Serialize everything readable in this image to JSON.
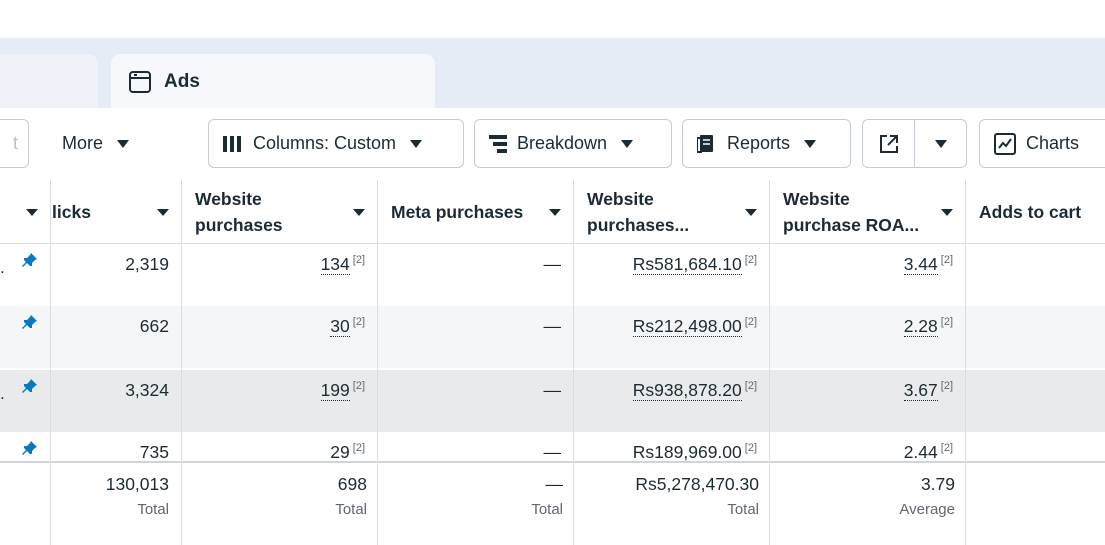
{
  "tabs": {
    "active_label": "Ads"
  },
  "toolbar": {
    "partial_label": "t",
    "more_label": "More",
    "columns_label": "Columns: Custom",
    "breakdown_label": "Breakdown",
    "reports_label": "Reports",
    "charts_label": "Charts"
  },
  "table": {
    "headers": {
      "clicks": "licks",
      "website_purchases": "Website purchases",
      "meta_purchases": "Meta purchases",
      "website_purchases_value": "Website purchases...",
      "website_roas": "Website purchase ROA...",
      "adds_to_cart": "Adds to cart"
    },
    "rows": [
      {
        "clicks": "2,319",
        "purchases": "134",
        "purchases_note": "[2]",
        "meta": "—",
        "value": "Rs581,684.10",
        "value_note": "[2]",
        "roas": "3.44",
        "roas_note": "[2]"
      },
      {
        "clicks": "662",
        "purchases": "30",
        "purchases_note": "[2]",
        "meta": "—",
        "value": "Rs212,498.00",
        "value_note": "[2]",
        "roas": "2.28",
        "roas_note": "[2]"
      },
      {
        "clicks": "3,324",
        "purchases": "199",
        "purchases_note": "[2]",
        "meta": "—",
        "value": "Rs938,878.20",
        "value_note": "[2]",
        "roas": "3.67",
        "roas_note": "[2]"
      },
      {
        "clicks": "735",
        "purchases": "29",
        "purchases_note": "[2]",
        "meta": "—",
        "value": "Rs189,969.00",
        "value_note": "[2]",
        "roas": "2.44",
        "roas_note": "[2]"
      }
    ],
    "totals": {
      "clicks": "130,013",
      "clicks_sub": "Total",
      "purchases": "698",
      "purchases_sub": "Total",
      "meta": "—",
      "meta_sub": "Total",
      "value": "Rs5,278,470.30",
      "value_sub": "Total",
      "roas": "3.79",
      "roas_sub": "Average"
    }
  },
  "colors": {
    "accent_blue": "#0a78be",
    "text": "#1c2b33",
    "border": "#c5ccd3"
  }
}
